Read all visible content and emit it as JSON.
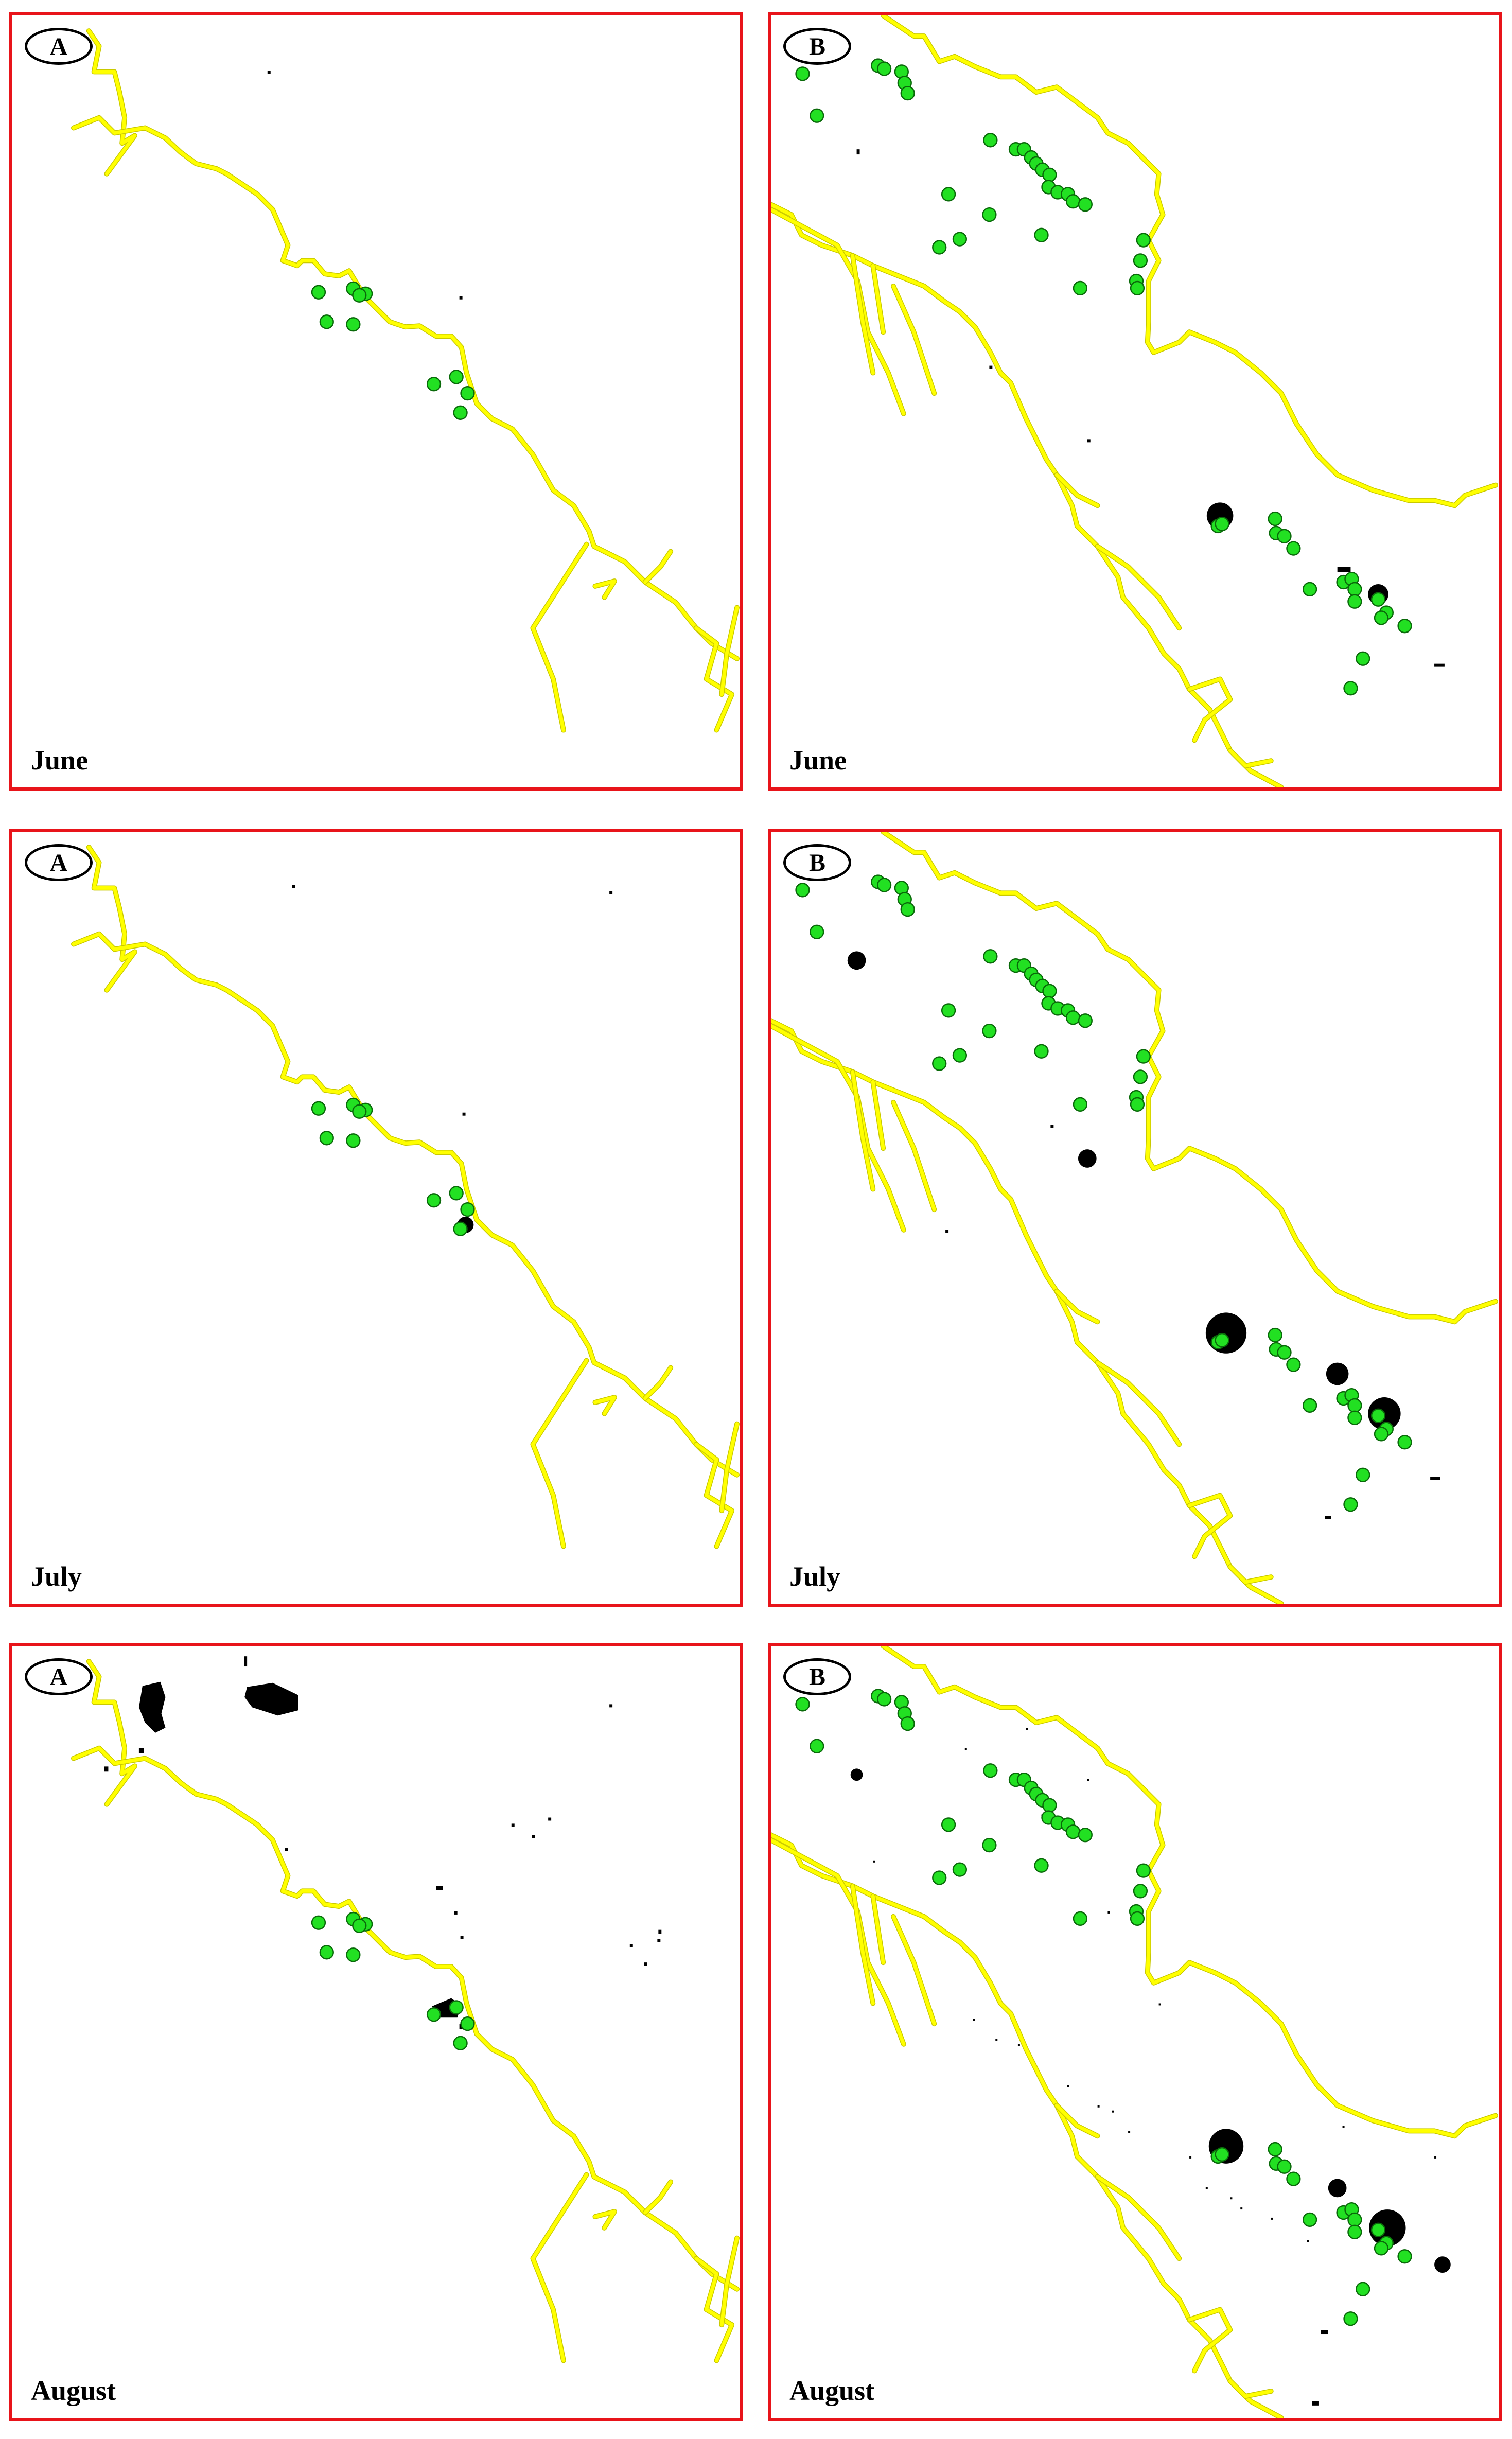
{
  "panels": [
    {
      "id": "june-a",
      "site": "A",
      "month": "June"
    },
    {
      "id": "june-b",
      "site": "B",
      "month": "June"
    },
    {
      "id": "july-a",
      "site": "A",
      "month": "July"
    },
    {
      "id": "july-b",
      "site": "B",
      "month": "July"
    },
    {
      "id": "august-a",
      "site": "A",
      "month": "August"
    },
    {
      "id": "august-b",
      "site": "B",
      "month": "August"
    }
  ],
  "legend_colors": {
    "coastline": "#ffff00",
    "sampling_points": "#22e022",
    "detections": "#000000",
    "panel_border": "#e8141a"
  }
}
